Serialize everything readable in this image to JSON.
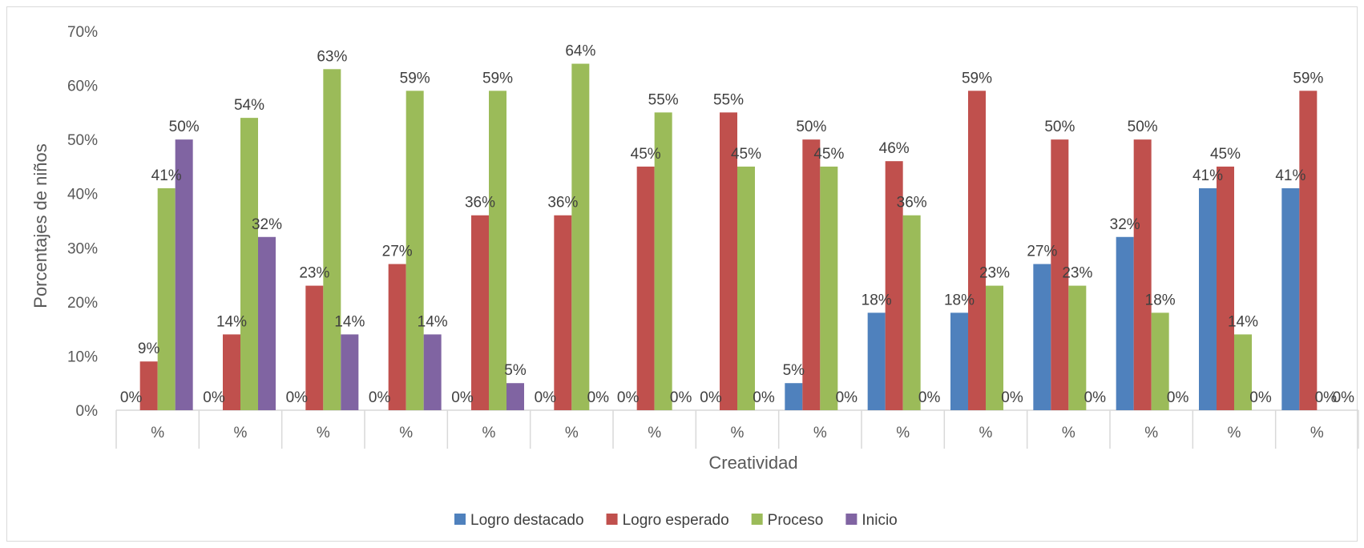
{
  "chart_data": {
    "type": "bar",
    "title": "",
    "xlabel": "Creatividad",
    "ylabel": "Porcentajes de niños",
    "ylim": [
      0,
      70
    ],
    "y_ticks": [
      "0%",
      "10%",
      "20%",
      "30%",
      "40%",
      "50%",
      "60%",
      "70%"
    ],
    "categories": [
      "%",
      "%",
      "%",
      "%",
      "%",
      "%",
      "%",
      "%",
      "%",
      "%",
      "%",
      "%",
      "%",
      "%",
      "%"
    ],
    "grid": false,
    "legend_position": "bottom",
    "series": [
      {
        "name": "Logro destacado",
        "color": "#4f81bd",
        "values": [
          0,
          0,
          0,
          0,
          0,
          0,
          0,
          0,
          5,
          18,
          18,
          27,
          32,
          41,
          41
        ],
        "labels": [
          "0%",
          "0%",
          "0%",
          "0%",
          "0%",
          "0%",
          "0%",
          "0%",
          "5%",
          "18%",
          "18%",
          "27%",
          "32%",
          "41%",
          "41%"
        ]
      },
      {
        "name": "Logro esperado",
        "color": "#c0504d",
        "values": [
          9,
          14,
          23,
          27,
          36,
          36,
          45,
          55,
          50,
          46,
          59,
          50,
          50,
          45,
          59
        ],
        "labels": [
          "9%",
          "14%",
          "23%",
          "27%",
          "36%",
          "36%",
          "45%",
          "55%",
          "50%",
          "46%",
          "59%",
          "50%",
          "50%",
          "45%",
          "59%"
        ]
      },
      {
        "name": "Proceso",
        "color": "#9bbb59",
        "values": [
          41,
          54,
          63,
          59,
          59,
          64,
          55,
          45,
          45,
          36,
          23,
          23,
          18,
          14,
          0
        ],
        "labels": [
          "41%",
          "54%",
          "63%",
          "59%",
          "59%",
          "64%",
          "55%",
          "45%",
          "45%",
          "36%",
          "23%",
          "23%",
          "18%",
          "14%",
          "0%"
        ]
      },
      {
        "name": "Inicio",
        "color": "#8064a2",
        "values": [
          50,
          32,
          14,
          14,
          5,
          0,
          0,
          0,
          0,
          0,
          0,
          0,
          0,
          0,
          0
        ],
        "labels": [
          "50%",
          "32%",
          "14%",
          "14%",
          "5%",
          "0%",
          "0%",
          "0%",
          "0%",
          "0%",
          "0%",
          "0%",
          "0%",
          "0%",
          "0%"
        ]
      }
    ]
  }
}
